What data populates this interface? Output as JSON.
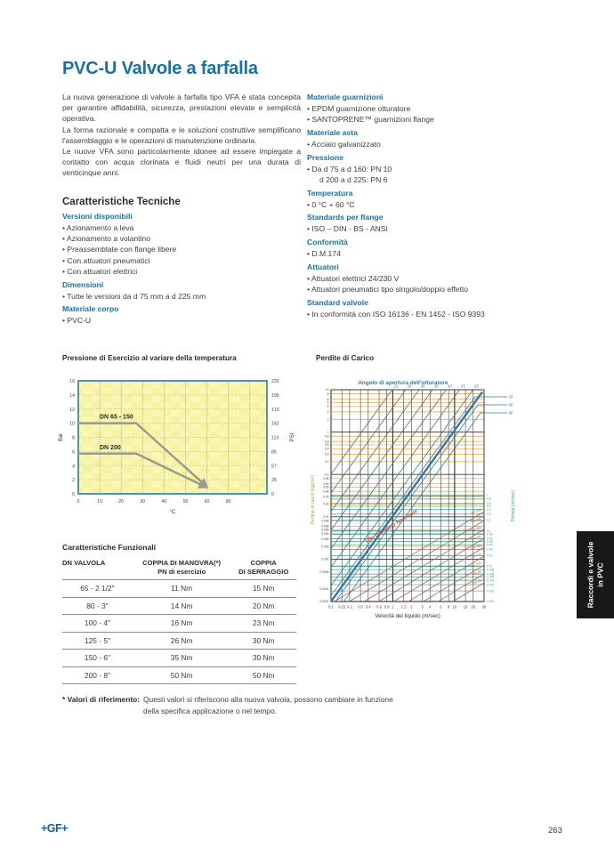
{
  "header": {
    "title": "PVC-U Valvole a farfalla"
  },
  "intro": {
    "paragraphs": [
      "La nuova generazione di valvole a farfalla tipo VFA è stata concepita per garantire affidabilità, sicurezza, prestazioni elevate e semplicità operativa.",
      "La forma razionale e compatta e le soluzioni costruttive semplificano l'assemblaggio e le operazioni di manutenzione ordinaria.",
      "Le nuove VFA sono particolarmente idonee ad essere impiegate a contatto con acqua clorinata e fluidi neutri per una durata di venticinque anni."
    ]
  },
  "tech": {
    "heading": "Caratteristiche Tecniche",
    "left_groups": [
      {
        "label": "Versioni disponibili",
        "items": [
          {
            "text": "Azionamento a leva",
            "bullet": true
          },
          {
            "text": "Azionamento a volantino",
            "bullet": true
          },
          {
            "text": "Preassemblate con flange libere",
            "bullet": true
          },
          {
            "text": "Con attuatori pneumatici",
            "bullet": true
          },
          {
            "text": "Con attuatori elettrici",
            "bullet": true
          }
        ]
      },
      {
        "label": "Dimensioni",
        "items": [
          {
            "text": "Tutte le versioni da d 75 mm a d 225 mm",
            "bullet": true
          }
        ]
      },
      {
        "label": "Materiale corpo",
        "items": [
          {
            "text": "PVC-U",
            "bullet": true
          }
        ]
      }
    ],
    "right_groups": [
      {
        "label": "Materiale guarnizioni",
        "items": [
          {
            "text": "EPDM guarnizione otturatore",
            "bullet": true
          },
          {
            "text": "SANTOPRENE™ guarnizioni flange",
            "bullet": true
          }
        ]
      },
      {
        "label": "Materiale asta",
        "items": [
          {
            "text": "Acciaio galvanizzato",
            "bullet": true
          }
        ]
      },
      {
        "label": "Pressione",
        "items": [
          {
            "text": "Da d 75 a d 160: PN 10",
            "bullet": true
          },
          {
            "text": "d 200 a d 225: PN 6",
            "bullet": false
          }
        ]
      },
      {
        "label": "Temperatura",
        "items": [
          {
            "text": "0 °C + 60 °C",
            "bullet": true
          }
        ]
      },
      {
        "label": "Standards per flange",
        "items": [
          {
            "text": "ISO – DIN - BS - ANSI",
            "bullet": true
          }
        ]
      },
      {
        "label": "Conformità",
        "items": [
          {
            "text": "D.M.174",
            "bullet": true
          }
        ]
      },
      {
        "label": "Attuatori",
        "items": [
          {
            "text": "Attuatori elettrici 24/230 V",
            "bullet": true
          },
          {
            "text": "Attuatori pneumatici tipo singolo/doppio effetto",
            "bullet": true
          }
        ]
      },
      {
        "label": "Standard valvole",
        "items": [
          {
            "text": "In conformità con ISO 16136 - EN 1452 - ISO 9393",
            "bullet": true
          }
        ]
      }
    ]
  },
  "chart_data": [
    {
      "type": "line",
      "title": "Pressione di Esercizio al variare della temperatura",
      "xlabel": "°C",
      "ylabel_left": "Bar",
      "ylabel_right": "PSI",
      "x_ticks": [
        "0",
        "10",
        "20",
        "30",
        "40",
        "50",
        "60",
        "80"
      ],
      "y_left_ticks": [
        "16",
        "14",
        "12",
        "10",
        "8",
        "6",
        "4",
        "2",
        "0"
      ],
      "y_right_ticks": [
        "225",
        "199",
        "170",
        "142",
        "113",
        "85",
        "57",
        "28",
        "0"
      ],
      "ylim": [
        0,
        16
      ],
      "series": [
        {
          "name": "DN 65 - 150",
          "points": [
            [
              0,
              10
            ],
            [
              27,
              10
            ],
            [
              60,
              1
            ]
          ]
        },
        {
          "name": "DN 200",
          "points": [
            [
              0,
              5.7
            ],
            [
              27,
              5.7
            ],
            [
              60,
              0.9
            ]
          ]
        }
      ]
    },
    {
      "type": "nomogram",
      "title": "Perdite di Carico",
      "top_label": "Angolo di apertura dell'otturatore",
      "left_label": "Perdita di carico [kg/cm²]",
      "right_label": "Portata [m³/sec]",
      "xlabel": "Velocità del liquido (m/sec)",
      "x_ticks": [
        0.1,
        0.15,
        0.2,
        0.3,
        0.4,
        0.6,
        0.8,
        1,
        1.5,
        2,
        3,
        4,
        6,
        8,
        10,
        15,
        20,
        30
      ],
      "left_ticks": [
        10,
        8,
        6,
        5,
        4,
        3,
        2,
        1,
        0.8,
        0.6,
        0.5,
        0.4,
        0.3,
        0.2,
        0.1,
        0.08,
        0.06,
        0.05,
        0.04,
        0.03,
        0.02,
        0.01,
        0.008,
        0.006,
        0.005,
        0.004,
        0.003,
        0.002,
        0.001,
        0.0005,
        0.0002,
        0.0001
      ],
      "right_ticks": [
        1,
        0.8,
        0.6,
        0.5,
        0.4,
        0.3,
        0.2,
        0.1,
        0.08,
        0.06,
        0.05,
        0.04,
        0.03,
        0.02,
        0.01,
        0.008,
        0.006,
        0.005,
        0.004,
        0.003,
        0.002,
        0.001
      ],
      "angle_lines": [
        "20",
        "30",
        "40",
        "45",
        "50",
        "55",
        "60"
      ],
      "angle_lines_bent": [
        "70",
        "80",
        "90"
      ],
      "dn_lines": [
        "DN 350",
        "DN 300",
        "DN 250",
        "DN 200",
        "DN 150",
        "DN 125",
        "DN 100",
        "DN 80",
        "DN 65"
      ],
      "dn_label": "DN: Diametro Nominale"
    }
  ],
  "functional": {
    "heading": "Caratteristiche Funzionali",
    "columns": [
      {
        "top": "DN VALVOLA",
        "bottom": ""
      },
      {
        "top": "COPPIA DI MANOVRA(*)",
        "bottom": "PN di esercizio"
      },
      {
        "top": "COPPIA",
        "bottom": "DI SERRAGGIO"
      }
    ],
    "rows": [
      [
        "65 - 2 1/2\"",
        "11 Nm",
        "15 Nm"
      ],
      [
        "80 - 3\"",
        "14 Nm",
        "20 Nm"
      ],
      [
        "100 - 4\"",
        "16 Nm",
        "23 Nm"
      ],
      [
        "125 - 5\"",
        "26 Nm",
        "30 Nm"
      ],
      [
        "150 - 6\"",
        "35 Nm",
        "30 Nm"
      ],
      [
        "200 - 8\"",
        "50 Nm",
        "50 Nm"
      ]
    ]
  },
  "footnote": {
    "label": "* Valori di riferimento:",
    "text1": "Questi valori si riferiscono alla nuova valvola, possono cambiare in funzione",
    "text2": "della specifica applicazione o nel tempo."
  },
  "footer": {
    "logo": "+GF+",
    "page_number": "263"
  },
  "side_tab": {
    "line1": "Raccordi e valvole",
    "line2": "in PVC"
  },
  "colors": {
    "accent_blue": "#1a71a1",
    "chart_yellow": "#f7f3a3",
    "chart_yellow_light": "#faf6b4",
    "chart_frame": "#4f93b5",
    "line_gray": "#9b9b8d",
    "grid_orange": "#eba341",
    "grid_teal": "#3fa08f",
    "angle_blue": "#39799f",
    "dn_red": "#c2573f",
    "loss_left_label_green": "#96a83e",
    "portata_teal": "#2aa79b",
    "tab_bg": "#181818"
  }
}
